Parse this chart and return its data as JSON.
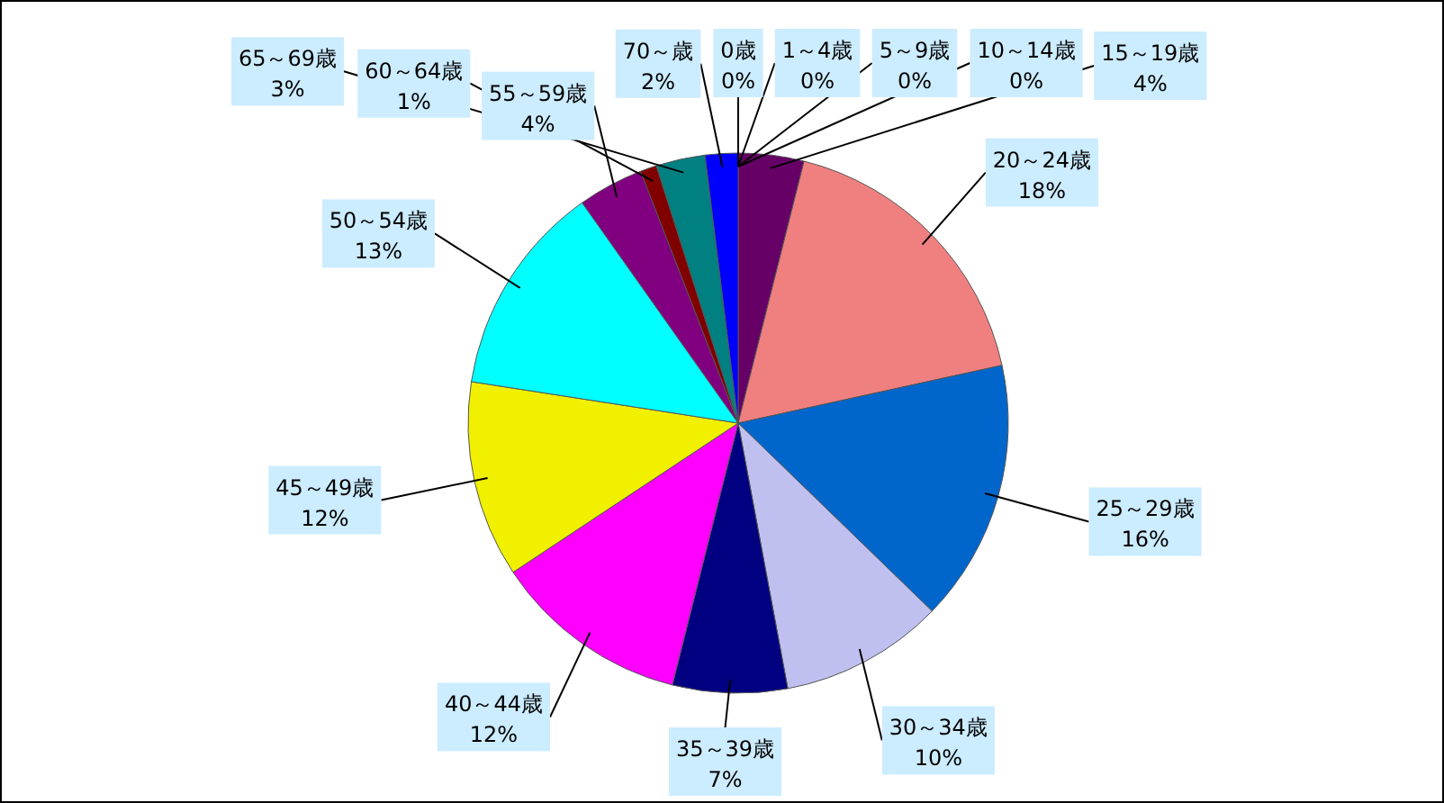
{
  "chart_data": {
    "type": "pie",
    "categories": [
      "0歳",
      "1～4歳",
      "5～9歳",
      "10～14歳",
      "15～19歳",
      "20～24歳",
      "25～29歳",
      "30～34歳",
      "35～39歳",
      "40～44歳",
      "45～49歳",
      "50～54歳",
      "55～59歳",
      "60～64歳",
      "65～69歳",
      "70～歳"
    ],
    "values": [
      0,
      0,
      0,
      0,
      4,
      18,
      16,
      10,
      7,
      12,
      12,
      13,
      4,
      1,
      3,
      2
    ],
    "colors": [
      null,
      null,
      null,
      null,
      "#660066",
      "#f08080",
      "#0066cc",
      "#c0c0f0",
      "#000080",
      "#ff00ff",
      "#f0f000",
      "#00ffff",
      "#800080",
      "#800000",
      "#008080",
      "#0000ff"
    ],
    "value_labels": [
      "0%",
      "0%",
      "0%",
      "0%",
      "4%",
      "18%",
      "16%",
      "10%",
      "7%",
      "12%",
      "12%",
      "13%",
      "4%",
      "1%",
      "3%",
      "2%"
    ]
  }
}
